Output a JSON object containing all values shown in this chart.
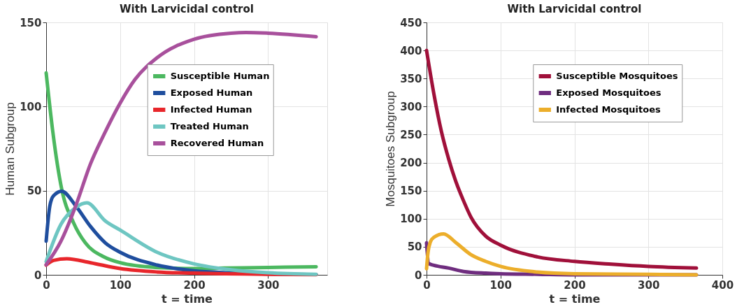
{
  "chart_data": [
    {
      "type": "line",
      "title": "With Larvicidal control",
      "xlabel": "t = time",
      "ylabel": "Human Subgroup",
      "xlim": [
        0,
        380
      ],
      "xticks": [
        0,
        100,
        200,
        300
      ],
      "ylim": [
        0,
        150
      ],
      "yticks": [
        0,
        50,
        100,
        150
      ],
      "grid": true,
      "legend": "top right",
      "marker": "none",
      "line_style": "solid",
      "series": [
        {
          "name": "Susceptible Human",
          "color": "#4cb860",
          "x": [
            0,
            9,
            15,
            21,
            37,
            53,
            78,
            100,
            148,
            200,
            242,
            300,
            365
          ],
          "values": [
            120,
            85,
            66,
            51,
            31,
            19,
            10.7,
            7.2,
            4.4,
            3.7,
            4,
            4.4,
            4.8
          ]
        },
        {
          "name": "Exposed Human",
          "color": "#1f4e9e",
          "x": [
            0,
            5,
            10,
            21,
            40,
            60,
            80,
            100,
            150,
            200,
            250,
            300,
            365
          ],
          "values": [
            20,
            41,
            47,
            49.7,
            41,
            28.7,
            19,
            13.4,
            5.8,
            2.4,
            1.2,
            0.5,
            0.2
          ]
        },
        {
          "name": "Infected Human",
          "color": "#e8262b",
          "x": [
            0,
            10,
            28,
            60,
            100,
            150,
            200,
            300,
            365
          ],
          "values": [
            5.8,
            8.6,
            9.6,
            7.2,
            3.7,
            1.7,
            1,
            0.3,
            0.1
          ]
        },
        {
          "name": "Treated Human",
          "color": "#6ec6c2",
          "x": [
            0,
            20,
            40,
            55,
            80,
            100,
            150,
            200,
            250,
            300,
            365
          ],
          "values": [
            7.9,
            30,
            40,
            42.8,
            32,
            26.6,
            13.4,
            6.5,
            3,
            1.2,
            0.3
          ]
        },
        {
          "name": "Recovered Human",
          "color": "#a8509c",
          "x": [
            0,
            20,
            40,
            60,
            80,
            100,
            120,
            150,
            200,
            250,
            270,
            300,
            365
          ],
          "values": [
            6,
            20,
            41,
            66,
            85,
            102,
            116,
            129,
            140,
            143.6,
            144,
            143.6,
            141.5
          ]
        }
      ]
    },
    {
      "type": "line",
      "title": "With Larvicidal control",
      "xlabel": "t = time",
      "ylabel": "Mosquitoes Subgroup",
      "xlim": [
        0,
        400
      ],
      "xticks": [
        0,
        100,
        200,
        300,
        400
      ],
      "ylim": [
        0,
        450
      ],
      "yticks": [
        0,
        50,
        100,
        150,
        200,
        250,
        300,
        350,
        400,
        450
      ],
      "grid": true,
      "legend": "top right",
      "marker": "none",
      "line_style": "solid",
      "series": [
        {
          "name": "Susceptible Mosquitoes",
          "color": "#a0103a",
          "x": [
            0,
            10,
            20,
            30,
            40,
            50,
            60,
            80,
            100,
            150,
            200,
            250,
            300,
            365
          ],
          "values": [
            400,
            322,
            256,
            206,
            165,
            132,
            103,
            69,
            53,
            32,
            24,
            19,
            15,
            12
          ]
        },
        {
          "name": "Exposed Mosquitoes",
          "color": "#6f2d7f",
          "x": [
            0,
            3,
            10,
            30,
            50,
            80,
            100,
            150,
            200,
            365
          ],
          "values": [
            57,
            20,
            17,
            12,
            6,
            3,
            2,
            1,
            0,
            0
          ]
        },
        {
          "name": "Infected Mosquitoes",
          "color": "#ecae2b",
          "x": [
            0,
            2,
            5,
            10,
            23,
            40,
            60,
            80,
            100,
            150,
            200,
            300,
            365
          ],
          "values": [
            11,
            40,
            58,
            67,
            73,
            57,
            36,
            24,
            15,
            5,
            2,
            1,
            0
          ]
        }
      ]
    }
  ]
}
